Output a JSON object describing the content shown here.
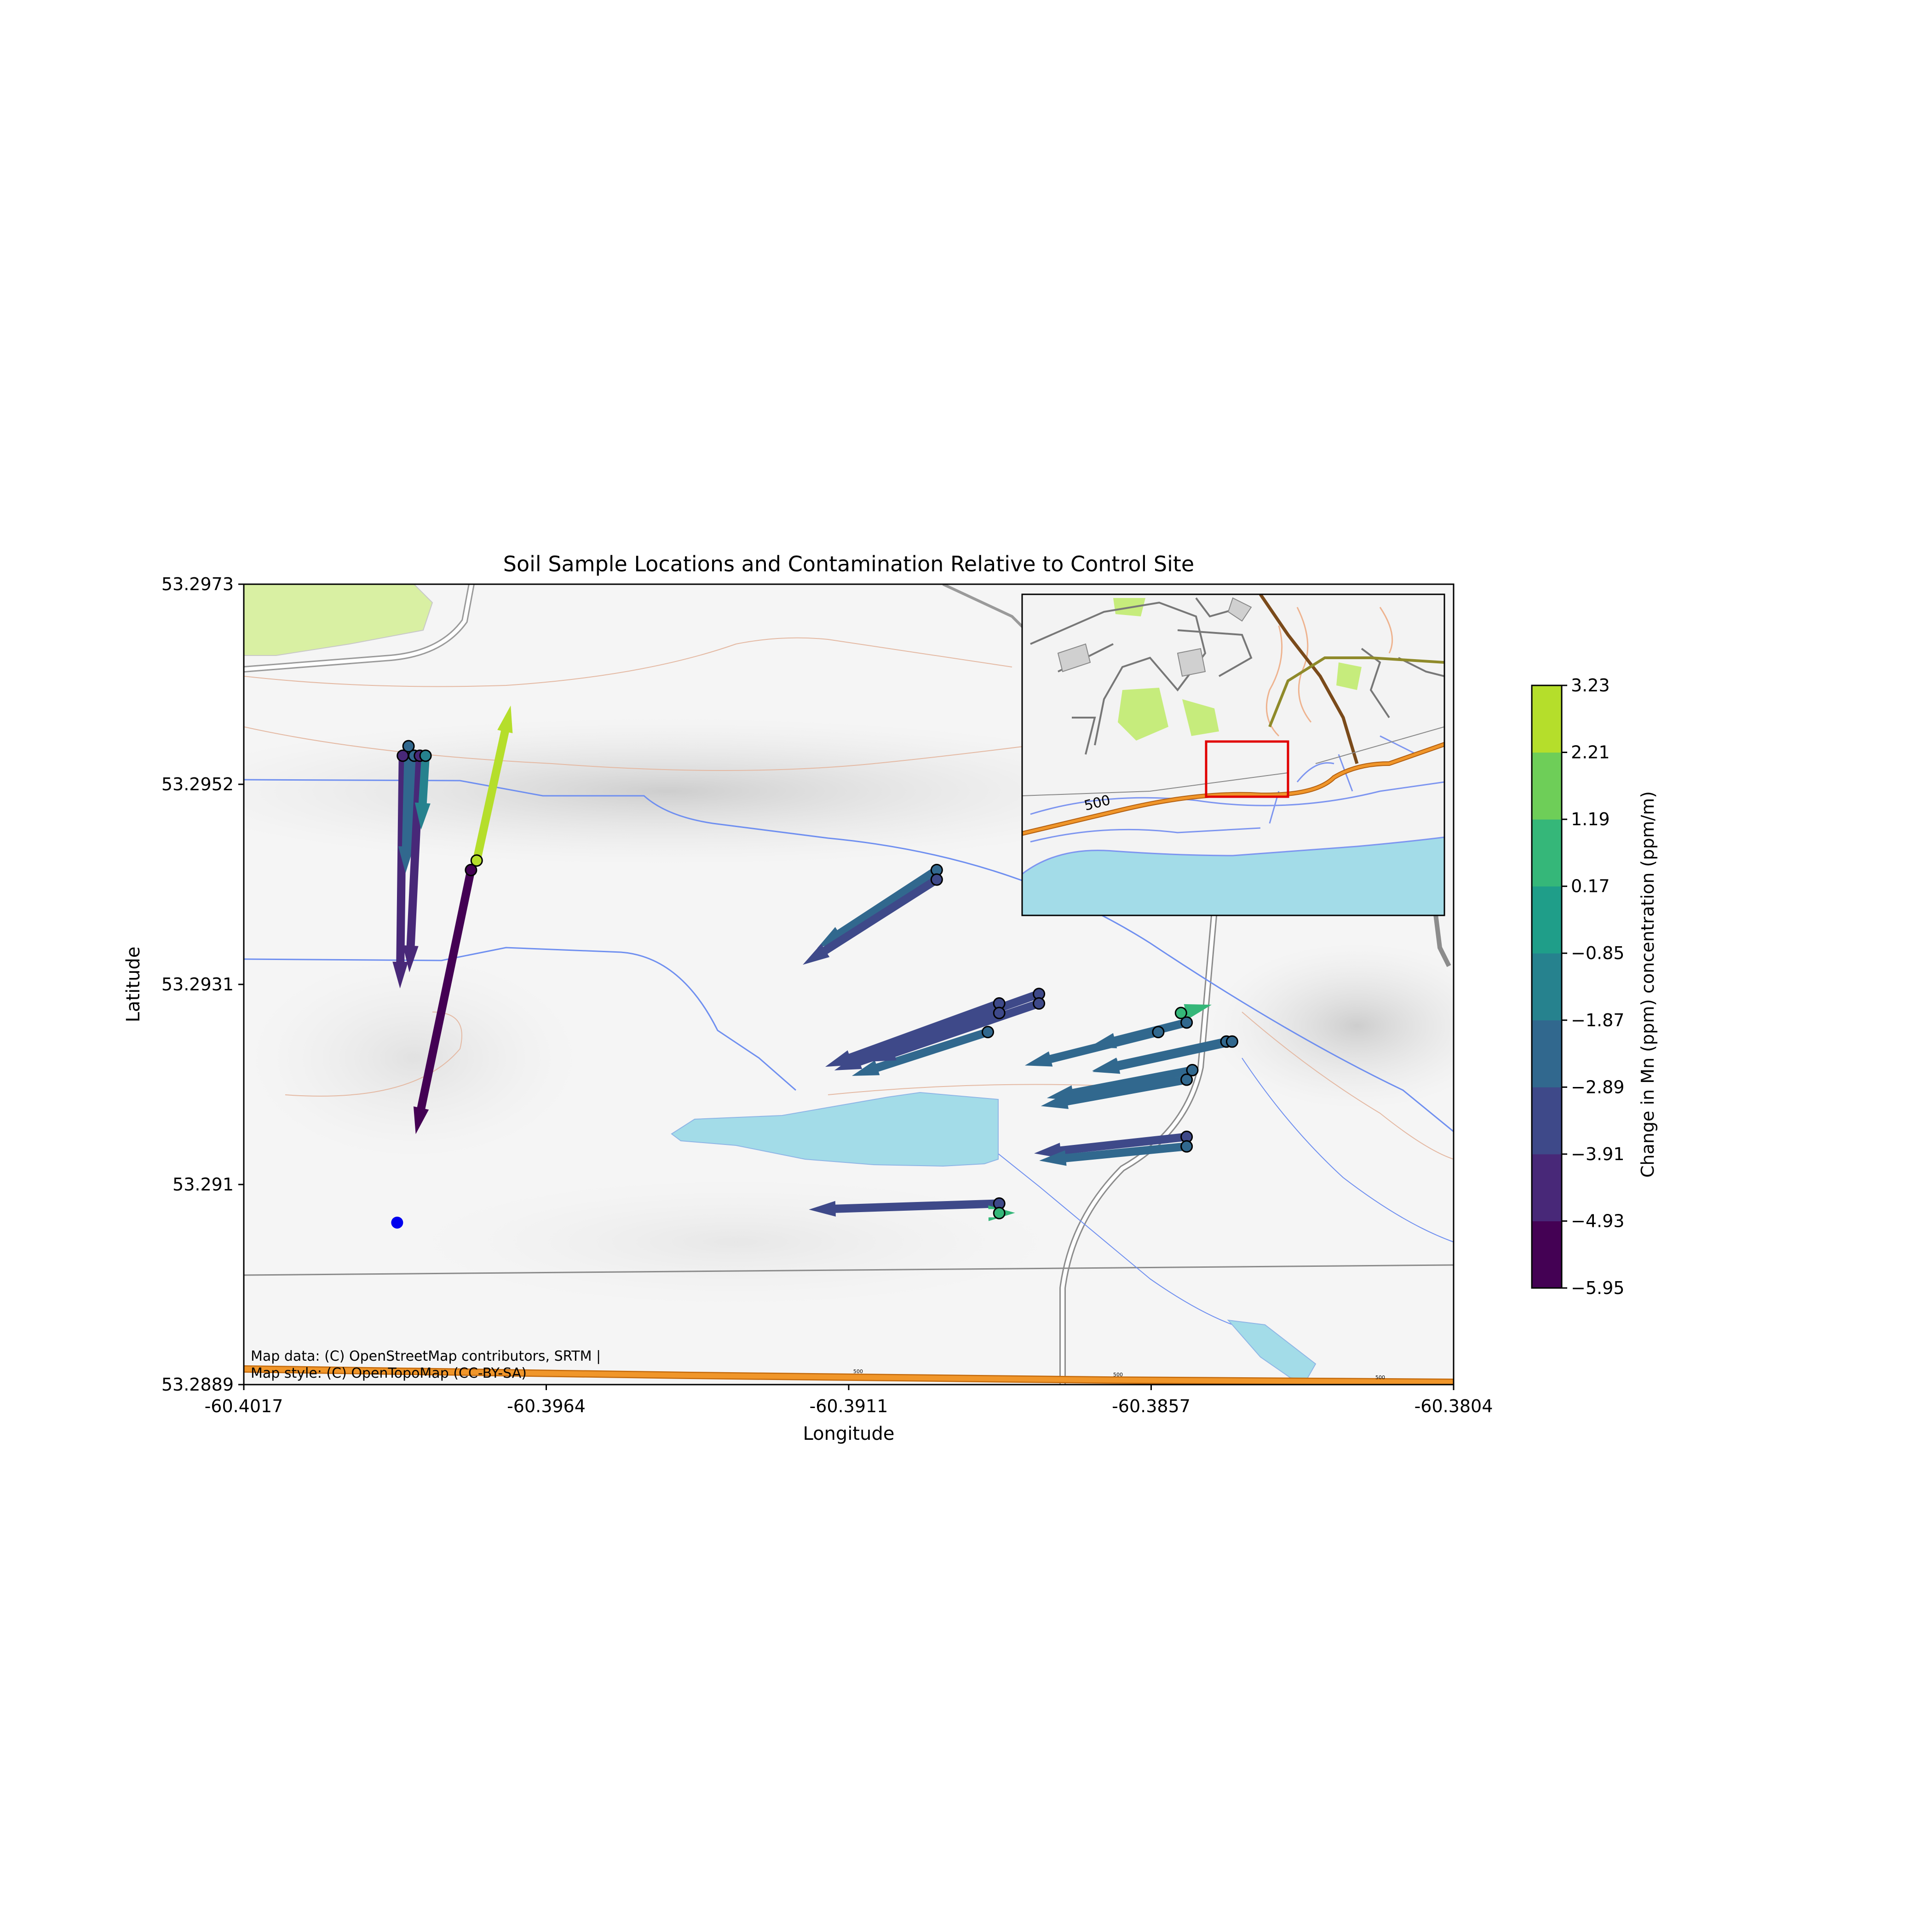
{
  "figure": {
    "title": "Soil Sample Locations and Contamination Relative to Control Site",
    "xlabel": "Longitude",
    "ylabel": "Latitude",
    "attribution_line1": "Map data: (C) OpenStreetMap contributors, SRTM |",
    "attribution_line2": "Map style: (C) OpenTopoMap (CC-BY-SA)"
  },
  "map_labels": {
    "contour_500": "500",
    "inset_500": "500"
  },
  "colors": {
    "lake": "#a3dce8",
    "road": "#f0962a",
    "stream": "#6f8ff0",
    "control_site": "#0000ee",
    "inset_frame": "#e00000"
  },
  "chart_data": {
    "type": "quiver",
    "xlim": [
      -60.4017,
      -60.3804
    ],
    "ylim": [
      53.2889,
      53.2973
    ],
    "x_ticks": [
      "-60.4017",
      "-60.3964",
      "-60.3911",
      "-60.3857",
      "-60.3804"
    ],
    "y_ticks": [
      "53.2973",
      "53.2952",
      "53.2931",
      "53.291",
      "53.2889"
    ],
    "control_site": {
      "lon": -60.399,
      "lat": 53.2906
    },
    "colorbar": {
      "label": "Change in Mn (ppm) concentration (ppm/m)",
      "min": -5.95,
      "max": 3.23,
      "tick_labels": [
        "3.23",
        "2.21",
        "1.19",
        "0.17",
        "−0.85",
        "−1.87",
        "−2.89",
        "−3.91",
        "−4.93",
        "−5.95"
      ],
      "colors": [
        "#440154",
        "#482878",
        "#3e4989",
        "#31688e",
        "#26828e",
        "#1f9e89",
        "#35b779",
        "#6ece58",
        "#b5de2b"
      ]
    },
    "samples": [
      {
        "lon": -60.3989,
        "lat": 53.2955,
        "value": -4.4
      },
      {
        "lon": -60.3988,
        "lat": 53.2956,
        "value": -2.4
      },
      {
        "lon": -60.3987,
        "lat": 53.2955,
        "value": -1.9
      },
      {
        "lon": -60.3986,
        "lat": 53.2955,
        "value": -4.1
      },
      {
        "lon": -60.3985,
        "lat": 53.2955,
        "value": -1.4
      },
      {
        "lon": -60.3976,
        "lat": 53.2944,
        "value": 3.0
      },
      {
        "lon": -60.3977,
        "lat": 53.2943,
        "value": -5.1
      },
      {
        "lon": -60.3895,
        "lat": 53.2943,
        "value": -2.7
      },
      {
        "lon": -60.3895,
        "lat": 53.2942,
        "value": -3.0
      },
      {
        "lon": -60.3884,
        "lat": 53.2929,
        "value": -3.5
      },
      {
        "lon": -60.3884,
        "lat": 53.2928,
        "value": -3.3
      },
      {
        "lon": -60.3886,
        "lat": 53.2926,
        "value": -2.7
      },
      {
        "lon": -60.3877,
        "lat": 53.293,
        "value": -3.0
      },
      {
        "lon": -60.3877,
        "lat": 53.2929,
        "value": -3.4
      },
      {
        "lon": -60.3852,
        "lat": 53.2928,
        "value": 0.6
      },
      {
        "lon": -60.3851,
        "lat": 53.2927,
        "value": -1.9
      },
      {
        "lon": -60.3856,
        "lat": 53.2926,
        "value": -2.6
      },
      {
        "lon": -60.3844,
        "lat": 53.2925,
        "value": -2.6
      },
      {
        "lon": -60.3843,
        "lat": 53.2925,
        "value": -2.7
      },
      {
        "lon": -60.385,
        "lat": 53.2922,
        "value": -2.8
      },
      {
        "lon": -60.3851,
        "lat": 53.2921,
        "value": -2.8
      },
      {
        "lon": -60.3851,
        "lat": 53.2915,
        "value": -2.9
      },
      {
        "lon": -60.3851,
        "lat": 53.2914,
        "value": -2.8
      },
      {
        "lon": -60.3884,
        "lat": 53.2908,
        "value": -3.6
      },
      {
        "lon": -60.3884,
        "lat": 53.2907,
        "value": 0.3
      }
    ]
  }
}
